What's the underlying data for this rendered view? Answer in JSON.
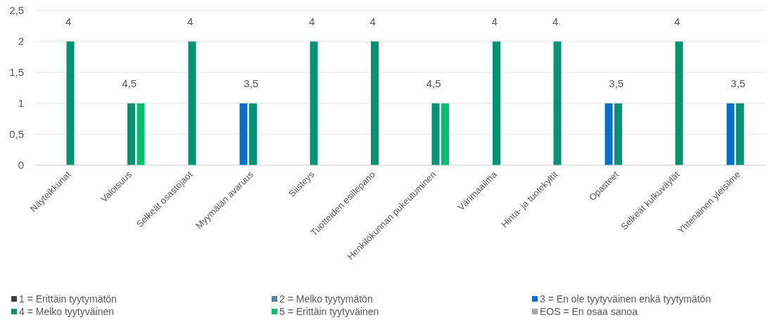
{
  "chart_data": {
    "type": "bar",
    "categories": [
      "Näyteikkunat",
      "Valoisuus",
      "Selkeät osastojaot",
      "Myymälän avaruus",
      "Siisteys",
      "Tuotteiden esillepano",
      "Henkilökunnan pukeutuminen",
      "Värimaailma",
      "Hinta- ja tuotekyltit",
      "Opasteet",
      "Selkeät kulkuväylät",
      "Yhtenäinen yleisilme"
    ],
    "series": [
      {
        "name": "1 = Erittäin tyytymätön",
        "color": "#404040",
        "values": [
          null,
          null,
          null,
          null,
          null,
          null,
          null,
          null,
          null,
          null,
          null,
          null
        ]
      },
      {
        "name": "2 = Melko tyytymätön",
        "color": "#5b7f95",
        "values": [
          null,
          null,
          null,
          null,
          null,
          null,
          null,
          null,
          null,
          null,
          null,
          null
        ]
      },
      {
        "name": "3 = En ole tyytyväinen enkä tyytymätön",
        "color": "#0070c8",
        "values": [
          null,
          null,
          null,
          1,
          null,
          null,
          null,
          null,
          null,
          1,
          null,
          1
        ]
      },
      {
        "name": "4 = Melko tyytyväinen",
        "color": "#009473",
        "values": [
          2,
          1,
          2,
          1,
          2,
          2,
          1,
          2,
          2,
          1,
          2,
          1
        ]
      },
      {
        "name": "5 = Erittäin tyytyväinen",
        "color": "#00bf6f",
        "values": [
          null,
          1,
          null,
          null,
          null,
          null,
          1,
          null,
          null,
          null,
          null,
          null
        ]
      },
      {
        "name": "EOS = En osaa sanoa",
        "color": "#a6a6a6",
        "values": [
          null,
          null,
          null,
          null,
          null,
          null,
          null,
          null,
          null,
          null,
          null,
          null
        ]
      }
    ],
    "annotations": [
      "4",
      "4,5",
      "4",
      "3,5",
      "4",
      "4",
      "4,5",
      "4",
      "4",
      "3,5",
      "4",
      "3,5"
    ],
    "ylim": [
      0,
      2.5
    ],
    "yticks": [
      0,
      {
        "value": 0.5,
        "label": "0,5"
      },
      1,
      {
        "value": 1.5,
        "label": "1,5"
      },
      2,
      {
        "value": 2.5,
        "label": "2,5"
      }
    ],
    "grid": "y",
    "legend": "bottom"
  }
}
